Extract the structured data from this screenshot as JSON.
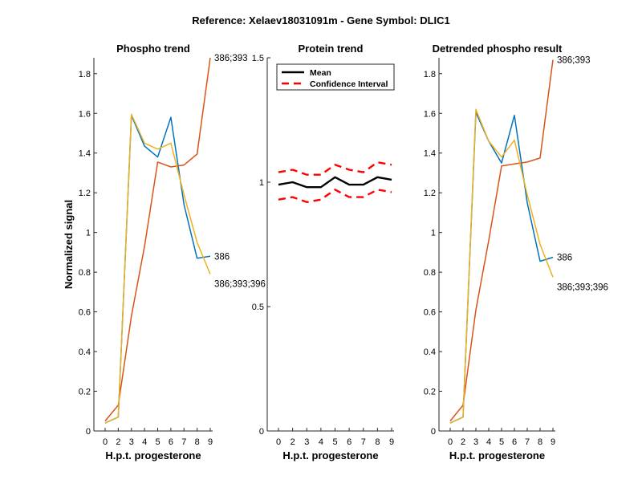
{
  "figure_title": "Reference:  Xelaev18031091m - Gene Symbol:  DLIC1",
  "colors": {
    "blue": "#0072BD",
    "orange": "#D95319",
    "yellow": "#EDB120",
    "black": "#000000",
    "red": "#FF0000"
  },
  "chart_data": [
    {
      "id": "phospho",
      "type": "line",
      "title": "Phospho trend",
      "xlabel": "H.p.t. progesterone",
      "ylabel": "Normalized signal",
      "ylim": [
        0,
        1.88
      ],
      "categories": [
        "0",
        "2",
        "3",
        "4",
        "5",
        "6",
        "7",
        "8",
        "9"
      ],
      "yticks": [
        0,
        0.2,
        0.4,
        0.6,
        0.8,
        1,
        1.2,
        1.4,
        1.6,
        1.8
      ],
      "ytick_labels": [
        "0",
        "0.2",
        "0.4",
        "0.6",
        "0.8",
        "1",
        "1.2",
        "1.4",
        "1.6",
        "1.8"
      ],
      "series": [
        {
          "name": "386",
          "color": "blue",
          "label": "386",
          "values": [
            0.04,
            0.07,
            1.59,
            1.435,
            1.38,
            1.58,
            1.14,
            0.87,
            0.88
          ]
        },
        {
          "name": "386;393",
          "color": "orange",
          "label": "386;393",
          "values": [
            0.05,
            0.13,
            0.58,
            0.93,
            1.355,
            1.33,
            1.34,
            1.395,
            1.88
          ]
        },
        {
          "name": "386;393;396",
          "color": "yellow",
          "label": "386;393;396",
          "values": [
            0.04,
            0.07,
            1.595,
            1.45,
            1.42,
            1.45,
            1.19,
            0.95,
            0.79
          ]
        }
      ]
    },
    {
      "id": "protein",
      "type": "line",
      "title": "Protein trend",
      "xlabel": "H.p.t. progesterone",
      "ylabel": "",
      "ylim": [
        0,
        1.5
      ],
      "categories": [
        "0",
        "2",
        "3",
        "4",
        "5",
        "6",
        "7",
        "8",
        "9"
      ],
      "yticks": [
        0,
        0.5,
        1,
        1.5
      ],
      "ytick_labels": [
        "0",
        "0.5",
        "1",
        "1.5"
      ],
      "legend": [
        "Mean",
        "Confidence Interval"
      ],
      "series": [
        {
          "name": "Mean",
          "color": "black",
          "dash": false,
          "values": [
            0.99,
            1.0,
            0.98,
            0.98,
            1.02,
            0.99,
            0.99,
            1.02,
            1.01
          ]
        },
        {
          "name": "Confidence Interval upper",
          "color": "red",
          "dash": true,
          "values": [
            1.04,
            1.05,
            1.03,
            1.03,
            1.07,
            1.05,
            1.04,
            1.08,
            1.07
          ]
        },
        {
          "name": "Confidence Interval lower",
          "color": "red",
          "dash": true,
          "values": [
            0.93,
            0.94,
            0.92,
            0.93,
            0.97,
            0.94,
            0.94,
            0.97,
            0.96
          ]
        }
      ]
    },
    {
      "id": "detrended",
      "type": "line",
      "title": "Detrended phospho result",
      "xlabel": "H.p.t. progesterone",
      "ylabel": "",
      "ylim": [
        0,
        1.88
      ],
      "categories": [
        "0",
        "2",
        "3",
        "4",
        "5",
        "6",
        "7",
        "8",
        "9"
      ],
      "yticks": [
        0,
        0.2,
        0.4,
        0.6,
        0.8,
        1,
        1.2,
        1.4,
        1.6,
        1.8
      ],
      "ytick_labels": [
        "0",
        "0.2",
        "0.4",
        "0.6",
        "0.8",
        "1",
        "1.2",
        "1.4",
        "1.6",
        "1.8"
      ],
      "series": [
        {
          "name": "386",
          "color": "blue",
          "label": "386",
          "values": [
            0.04,
            0.07,
            1.605,
            1.46,
            1.35,
            1.59,
            1.15,
            0.855,
            0.875
          ]
        },
        {
          "name": "386;393",
          "color": "orange",
          "label": "386;393",
          "values": [
            0.05,
            0.13,
            0.61,
            0.96,
            1.335,
            1.345,
            1.355,
            1.375,
            1.87
          ]
        },
        {
          "name": "386;393;396",
          "color": "yellow",
          "label": "386;393;396",
          "values": [
            0.04,
            0.07,
            1.62,
            1.46,
            1.38,
            1.465,
            1.19,
            0.94,
            0.775
          ]
        }
      ]
    }
  ]
}
